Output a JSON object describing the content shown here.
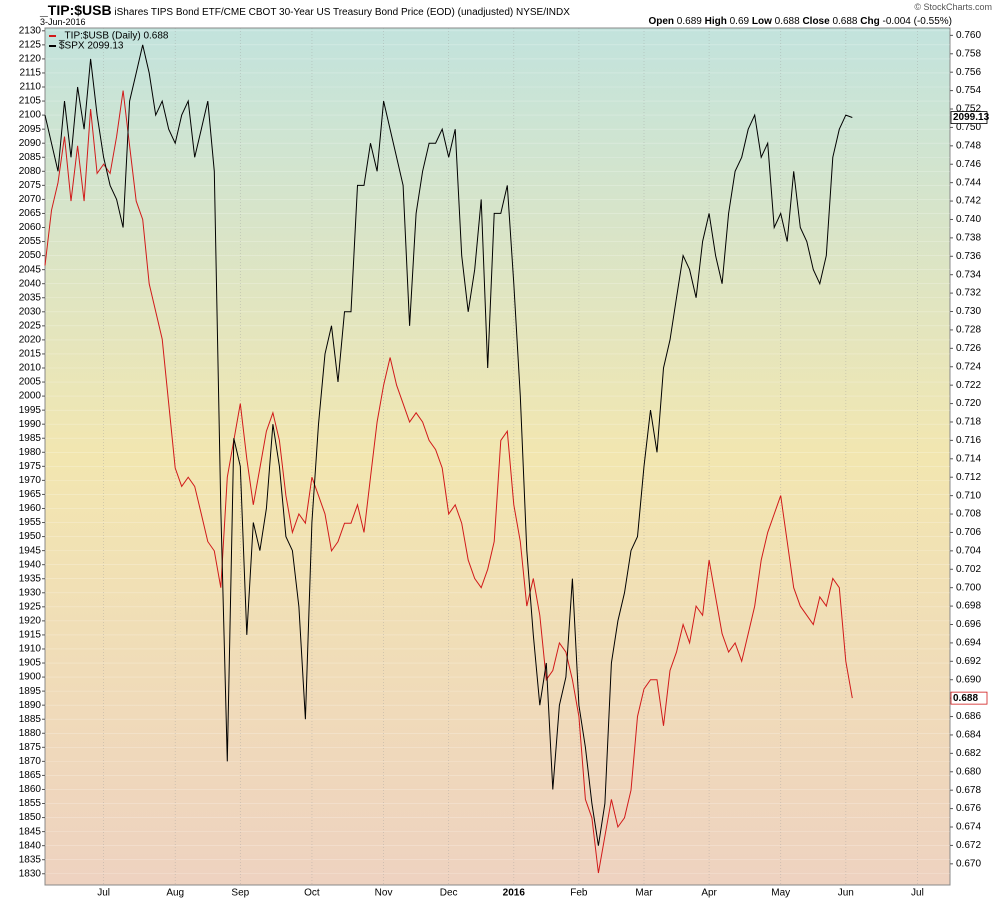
{
  "chart_data": {
    "type": "line",
    "title": "_TIP:$USB",
    "subtitle": "iShares TIPS Bond ETF/CME CBOT 30-Year US Treasury Bond Price (EOD) (unadjusted)  NYSE/INDX",
    "date": "3-Jun-2016",
    "credit": "© StockCharts.com",
    "quote": [
      {
        "label": "Open",
        "value": 0.689
      },
      {
        "label": "High",
        "value": 0.69
      },
      {
        "label": "Low",
        "value": 0.688
      },
      {
        "label": "Close",
        "value": 0.688
      },
      {
        "label": "Chg",
        "value": "-0.004 (-0.55%)"
      }
    ],
    "categories": [
      null,
      null,
      null,
      null,
      null,
      null,
      null,
      null,
      null,
      "Jul",
      null,
      null,
      null,
      null,
      null,
      null,
      null,
      null,
      null,
      null,
      "Aug",
      null,
      null,
      null,
      null,
      null,
      null,
      null,
      null,
      null,
      "Sep",
      null,
      null,
      null,
      null,
      null,
      null,
      null,
      null,
      null,
      null,
      "Oct",
      null,
      null,
      null,
      null,
      null,
      null,
      null,
      null,
      null,
      null,
      "Nov",
      null,
      null,
      null,
      null,
      null,
      null,
      null,
      null,
      null,
      "Dec",
      null,
      null,
      null,
      null,
      null,
      null,
      null,
      null,
      null,
      "2016",
      null,
      null,
      null,
      null,
      null,
      null,
      null,
      null,
      null,
      "Feb",
      null,
      null,
      null,
      null,
      null,
      null,
      null,
      null,
      null,
      "Mar",
      null,
      null,
      null,
      null,
      null,
      null,
      null,
      null,
      null,
      "Apr",
      null,
      null,
      null,
      null,
      null,
      null,
      null,
      null,
      null,
      null,
      "May",
      null,
      null,
      null,
      null,
      null,
      null,
      null,
      null,
      null,
      "Jun",
      null,
      null,
      null,
      null,
      null,
      null,
      null,
      null,
      null,
      null,
      "Jul",
      null,
      null,
      null,
      null,
      null
    ],
    "series": [
      {
        "name": "_TIP:$USB (Daily) 0.688",
        "color": "#d11a1a",
        "axis": "y2",
        "values": [
          0.735,
          0.741,
          0.744,
          0.749,
          0.742,
          0.748,
          0.742,
          0.752,
          0.745,
          0.746,
          0.745,
          0.749,
          0.754,
          0.748,
          0.742,
          0.74,
          0.733,
          0.73,
          0.727,
          0.72,
          0.713,
          0.711,
          0.712,
          0.711,
          0.708,
          0.705,
          0.704,
          0.7,
          0.712,
          0.716,
          0.72,
          0.714,
          0.709,
          0.713,
          0.717,
          0.719,
          0.716,
          0.71,
          0.706,
          0.708,
          0.707,
          0.712,
          0.71,
          0.708,
          0.704,
          0.705,
          0.707,
          0.707,
          0.709,
          0.706,
          0.712,
          0.718,
          0.722,
          0.725,
          0.722,
          0.72,
          0.718,
          0.719,
          0.718,
          0.716,
          0.715,
          0.713,
          0.708,
          0.709,
          0.707,
          0.703,
          0.701,
          0.7,
          0.702,
          0.705,
          0.716,
          0.717,
          0.709,
          0.705,
          0.698,
          0.701,
          0.697,
          0.69,
          0.691,
          0.694,
          0.693,
          0.69,
          0.686,
          0.677,
          0.675,
          0.669,
          0.673,
          0.677,
          0.674,
          0.675,
          0.678,
          0.686,
          0.689,
          0.69,
          0.69,
          0.685,
          0.691,
          0.693,
          0.696,
          0.694,
          0.698,
          0.697,
          0.703,
          0.699,
          0.695,
          0.693,
          0.694,
          0.692,
          0.695,
          0.698,
          0.703,
          0.706,
          0.708,
          0.71,
          0.705,
          0.7,
          0.698,
          0.697,
          0.696,
          0.699,
          0.698,
          0.701,
          0.7,
          0.692,
          0.688,
          null,
          null,
          null,
          null,
          null,
          null,
          null,
          null,
          null,
          null,
          null,
          null,
          null,
          null,
          null
        ]
      },
      {
        "name": "$SPX 2099.13",
        "color": "#000000",
        "axis": "y",
        "values": [
          2100,
          2090,
          2080,
          2105,
          2085,
          2110,
          2095,
          2120,
          2100,
          2085,
          2075,
          2070,
          2060,
          2105,
          2115,
          2125,
          2115,
          2100,
          2105,
          2095,
          2090,
          2100,
          2105,
          2085,
          2095,
          2105,
          2080,
          1960,
          1870,
          1985,
          1975,
          1915,
          1955,
          1945,
          1960,
          1990,
          1975,
          1950,
          1945,
          1925,
          1885,
          1955,
          1990,
          2015,
          2025,
          2005,
          2030,
          2030,
          2075,
          2075,
          2090,
          2080,
          2105,
          2095,
          2085,
          2075,
          2025,
          2065,
          2080,
          2090,
          2090,
          2095,
          2085,
          2095,
          2050,
          2030,
          2045,
          2070,
          2010,
          2065,
          2065,
          2075,
          2040,
          2000,
          1945,
          1915,
          1890,
          1905,
          1860,
          1890,
          1900,
          1935,
          1890,
          1875,
          1855,
          1840,
          1855,
          1905,
          1920,
          1930,
          1945,
          1950,
          1975,
          1995,
          1980,
          2010,
          2020,
          2035,
          2050,
          2045,
          2035,
          2055,
          2065,
          2050,
          2040,
          2065,
          2080,
          2085,
          2095,
          2100,
          2085,
          2090,
          2060,
          2065,
          2055,
          2080,
          2060,
          2055,
          2045,
          2040,
          2050,
          2085,
          2095,
          2100,
          2099.13,
          null,
          null,
          null,
          null,
          null,
          null,
          null,
          null,
          null,
          null,
          null,
          null,
          null,
          null,
          null
        ]
      }
    ],
    "ylim": [
      1826,
      2131
    ],
    "yticks": [
      1830,
      1835,
      1840,
      1845,
      1850,
      1855,
      1860,
      1865,
      1870,
      1875,
      1880,
      1885,
      1890,
      1895,
      1900,
      1905,
      1910,
      1915,
      1920,
      1925,
      1930,
      1935,
      1940,
      1945,
      1950,
      1955,
      1960,
      1965,
      1970,
      1975,
      1980,
      1985,
      1990,
      1995,
      2000,
      2005,
      2010,
      2015,
      2020,
      2025,
      2030,
      2035,
      2040,
      2045,
      2050,
      2055,
      2060,
      2065,
      2070,
      2075,
      2080,
      2085,
      2090,
      2095,
      2100,
      2105,
      2110,
      2115,
      2120,
      2125,
      2130
    ],
    "y2lim": [
      0.6677,
      0.7608
    ],
    "y2ticks": [
      {
        "value": 0.67,
        "label": "0.670"
      },
      0.672,
      0.674,
      0.676,
      0.678,
      {
        "value": 0.68,
        "label": "0.680"
      },
      0.682,
      0.684,
      0.686,
      0.688,
      {
        "value": 0.69,
        "label": "0.690"
      },
      0.692,
      0.694,
      0.696,
      0.698,
      {
        "value": 0.7,
        "label": "0.700"
      },
      0.702,
      0.704,
      0.706,
      0.708,
      {
        "value": 0.71,
        "label": "0.710"
      },
      0.712,
      0.714,
      0.716,
      0.718,
      {
        "value": 0.72,
        "label": "0.720"
      },
      0.722,
      0.724,
      0.726,
      0.728,
      {
        "value": 0.73,
        "label": "0.730"
      },
      0.732,
      0.734,
      0.736,
      0.738,
      {
        "value": 0.74,
        "label": "0.740"
      },
      0.742,
      0.744,
      0.746,
      0.748,
      {
        "value": 0.75,
        "label": "0.750"
      },
      0.752,
      0.754,
      0.756,
      0.758,
      {
        "value": 0.76,
        "label": "0.760"
      }
    ],
    "grid": true
  }
}
